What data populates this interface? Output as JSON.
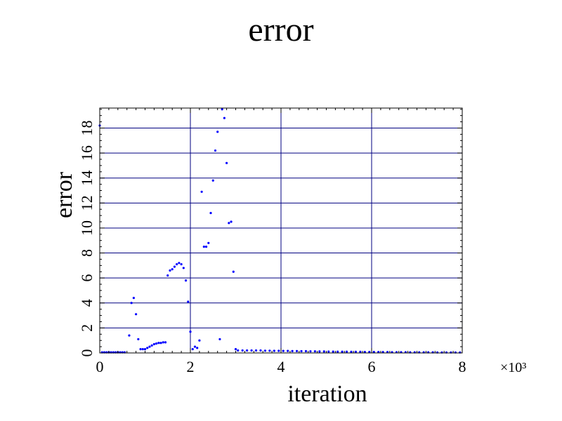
{
  "chart_data": {
    "type": "scatter",
    "title": "error",
    "xlabel": "iteration",
    "ylabel": "error",
    "x_multiplier_label": "×10³",
    "xlim": [
      0,
      8000
    ],
    "ylim": [
      0,
      19.6
    ],
    "x_ticks": [
      0,
      2000,
      4000,
      6000,
      8000
    ],
    "x_tick_labels": [
      "0",
      "2",
      "4",
      "6",
      "8"
    ],
    "y_ticks": [
      0,
      2,
      4,
      6,
      8,
      10,
      12,
      14,
      16,
      18
    ],
    "y_tick_labels": [
      "0",
      "2",
      "4",
      "6",
      "8",
      "10",
      "12",
      "14",
      "16",
      "18"
    ],
    "grid": true,
    "colors": {
      "points": "#0000ff",
      "grid": "#000080",
      "frame": "#000000"
    },
    "series": [
      {
        "points": [
          [
            0,
            18.2
          ],
          [
            50,
            0.05
          ],
          [
            100,
            0.05
          ],
          [
            150,
            0.05
          ],
          [
            200,
            0.05
          ],
          [
            250,
            0.05
          ],
          [
            300,
            0.05
          ],
          [
            350,
            0.05
          ],
          [
            400,
            0.05
          ],
          [
            450,
            0.05
          ],
          [
            500,
            0.05
          ],
          [
            550,
            0.05
          ],
          [
            650,
            1.4
          ],
          [
            700,
            4.0
          ],
          [
            750,
            4.4
          ],
          [
            800,
            3.1
          ],
          [
            850,
            1.1
          ],
          [
            900,
            0.3
          ],
          [
            950,
            0.3
          ],
          [
            1000,
            0.3
          ],
          [
            1050,
            0.4
          ],
          [
            1100,
            0.5
          ],
          [
            1150,
            0.6
          ],
          [
            1200,
            0.7
          ],
          [
            1250,
            0.75
          ],
          [
            1300,
            0.8
          ],
          [
            1350,
            0.8
          ],
          [
            1400,
            0.85
          ],
          [
            1450,
            0.85
          ],
          [
            1500,
            6.2
          ],
          [
            1550,
            6.6
          ],
          [
            1600,
            6.7
          ],
          [
            1650,
            6.9
          ],
          [
            1700,
            7.1
          ],
          [
            1750,
            7.2
          ],
          [
            1800,
            7.1
          ],
          [
            1850,
            6.8
          ],
          [
            1900,
            5.8
          ],
          [
            1950,
            4.1
          ],
          [
            2000,
            1.7
          ],
          [
            2050,
            0.3
          ],
          [
            2100,
            0.5
          ],
          [
            2150,
            0.4
          ],
          [
            2200,
            1.0
          ],
          [
            2250,
            12.9
          ],
          [
            2300,
            8.5
          ],
          [
            2350,
            8.5
          ],
          [
            2400,
            8.8
          ],
          [
            2450,
            11.2
          ],
          [
            2500,
            13.8
          ],
          [
            2550,
            16.2
          ],
          [
            2600,
            17.7
          ],
          [
            2650,
            1.1
          ],
          [
            2700,
            19.5
          ],
          [
            2750,
            18.8
          ],
          [
            2800,
            15.2
          ],
          [
            2850,
            10.4
          ],
          [
            2900,
            10.5
          ],
          [
            2950,
            6.5
          ],
          [
            3000,
            0.3
          ],
          [
            3050,
            0.2
          ],
          [
            3150,
            0.2
          ],
          [
            3250,
            0.2
          ],
          [
            3350,
            0.2
          ],
          [
            3450,
            0.2
          ],
          [
            3550,
            0.2
          ],
          [
            3650,
            0.18
          ],
          [
            3750,
            0.18
          ],
          [
            3850,
            0.17
          ],
          [
            3950,
            0.17
          ],
          [
            4050,
            0.16
          ],
          [
            4150,
            0.16
          ],
          [
            4250,
            0.15
          ],
          [
            4350,
            0.15
          ],
          [
            4450,
            0.14
          ],
          [
            4550,
            0.14
          ],
          [
            4650,
            0.13
          ],
          [
            4750,
            0.13
          ],
          [
            4850,
            0.12
          ],
          [
            4950,
            0.12
          ],
          [
            5050,
            0.11
          ],
          [
            5150,
            0.11
          ],
          [
            5250,
            0.1
          ],
          [
            5350,
            0.1
          ],
          [
            5450,
            0.1
          ],
          [
            5550,
            0.09
          ],
          [
            5650,
            0.09
          ],
          [
            5750,
            0.09
          ],
          [
            5850,
            0.08
          ],
          [
            5950,
            0.08
          ],
          [
            6050,
            0.08
          ],
          [
            6150,
            0.07
          ],
          [
            6250,
            0.07
          ],
          [
            6350,
            0.07
          ],
          [
            6450,
            0.06
          ],
          [
            6550,
            0.06
          ],
          [
            6650,
            0.06
          ],
          [
            6750,
            0.06
          ],
          [
            6850,
            0.05
          ],
          [
            6950,
            0.05
          ],
          [
            7050,
            0.05
          ],
          [
            7150,
            0.05
          ],
          [
            7250,
            0.05
          ],
          [
            7350,
            0.05
          ],
          [
            7450,
            0.04
          ],
          [
            7550,
            0.04
          ],
          [
            7650,
            0.04
          ],
          [
            7750,
            0.04
          ],
          [
            7850,
            0.04
          ],
          [
            7950,
            0.04
          ]
        ]
      }
    ]
  }
}
